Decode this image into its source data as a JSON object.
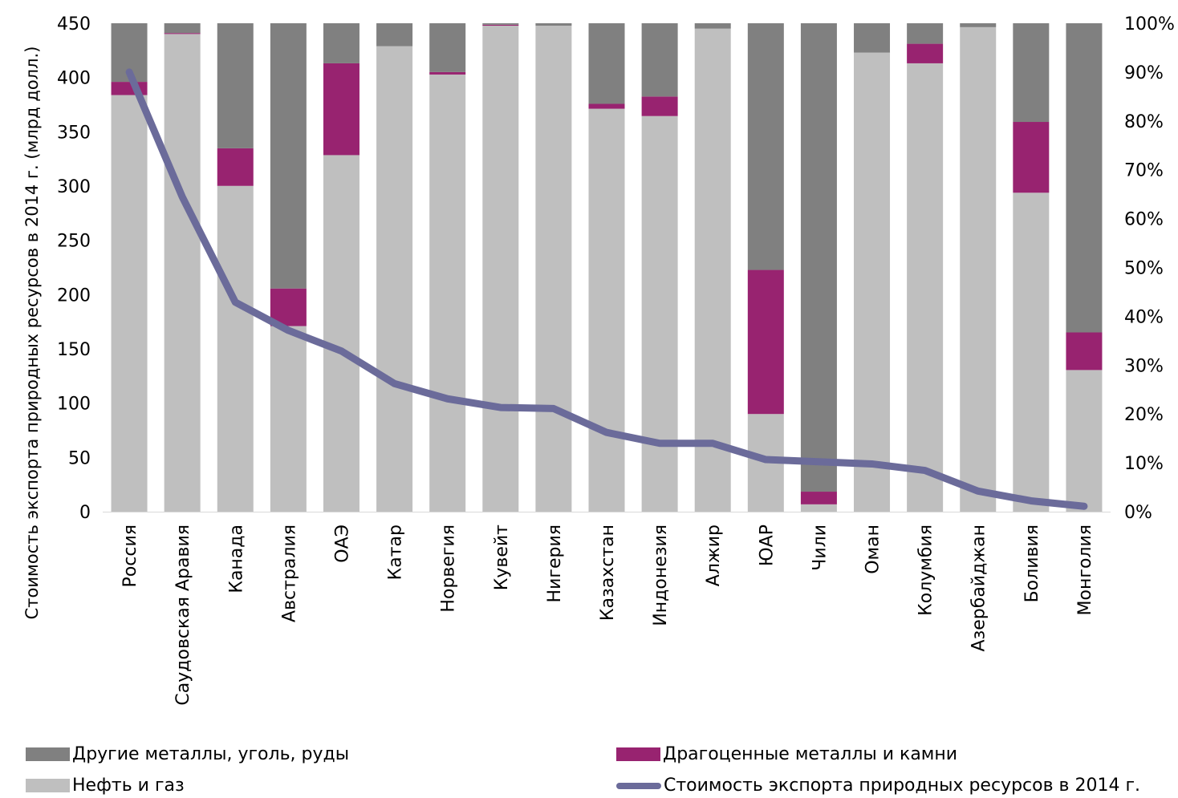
{
  "chart_data": {
    "type": "bar",
    "stacked": true,
    "ylabel": "Стоимость экспорта природных ресурсов в 2014 г. (млрд долл.)",
    "y_ticks": [
      "0",
      "50",
      "100",
      "150",
      "200",
      "250",
      "300",
      "350",
      "400",
      "450"
    ],
    "y2_ticks": [
      "0%",
      "10%",
      "20%",
      "30%",
      "40%",
      "50%",
      "60%",
      "70%",
      "80%",
      "90%",
      "100%"
    ],
    "ylim": [
      0,
      450
    ],
    "y2lim": [
      0,
      100
    ],
    "grid": false,
    "legend_position": "bottom",
    "categories": [
      "Россия",
      "Саудовская Аравия",
      "Канада",
      "Австралия",
      "ОАЭ",
      "Катар",
      "Норвегия",
      "Кувейт",
      "Нигерия",
      "Казахстан",
      "Индонезия",
      "Алжир",
      "ЮАР",
      "Чили",
      "Оман",
      "Колумбия",
      "Азербайджан",
      "Боливия",
      "Монголия"
    ],
    "series": [
      {
        "name": "Нефть и газ",
        "axis": "right",
        "color": "#bfbfbf",
        "values": [
          85.3,
          97.8,
          66.7,
          38.0,
          73.0,
          95.3,
          89.5,
          99.5,
          99.5,
          82.5,
          81.0,
          98.9,
          20.0,
          1.5,
          94.0,
          91.8,
          99.2,
          65.3,
          29.0
        ]
      },
      {
        "name": "Драгоценные металлы и камни",
        "axis": "right",
        "color": "#982370",
        "values": [
          2.7,
          0.2,
          7.7,
          7.7,
          18.8,
          0.0,
          0.5,
          0.2,
          0.0,
          1.0,
          4.0,
          0.0,
          29.5,
          2.6,
          0.0,
          4.0,
          0.0,
          14.5,
          7.7
        ]
      },
      {
        "name": "Другие металлы, уголь, руды",
        "axis": "right",
        "color": "#808080",
        "values": [
          12.0,
          2.0,
          25.6,
          54.3,
          8.2,
          4.7,
          10.0,
          0.3,
          0.5,
          16.5,
          15.0,
          1.1,
          50.5,
          95.9,
          6.0,
          4.2,
          0.8,
          20.2,
          63.3
        ]
      },
      {
        "name": "Стоимость экспорта природных ресурсов в 2014 г.",
        "type": "line",
        "axis": "left",
        "color": "#6b6b9a",
        "values": [
          405,
          290,
          193,
          167,
          148,
          118,
          104,
          96,
          95,
          73,
          63,
          63,
          48,
          46,
          44,
          38,
          19,
          10,
          5
        ]
      }
    ]
  },
  "legend": [
    {
      "label": "Другие металлы, уголь, руды",
      "color": "#808080",
      "kind": "box"
    },
    {
      "label": "Драгоценные металлы и камни",
      "color": "#982370",
      "kind": "box"
    },
    {
      "label": "Нефть и газ",
      "color": "#bfbfbf",
      "kind": "box"
    },
    {
      "label": "Стоимость экспорта природных ресурсов в 2014 г.",
      "color": "#6b6b9a",
      "kind": "line"
    }
  ]
}
